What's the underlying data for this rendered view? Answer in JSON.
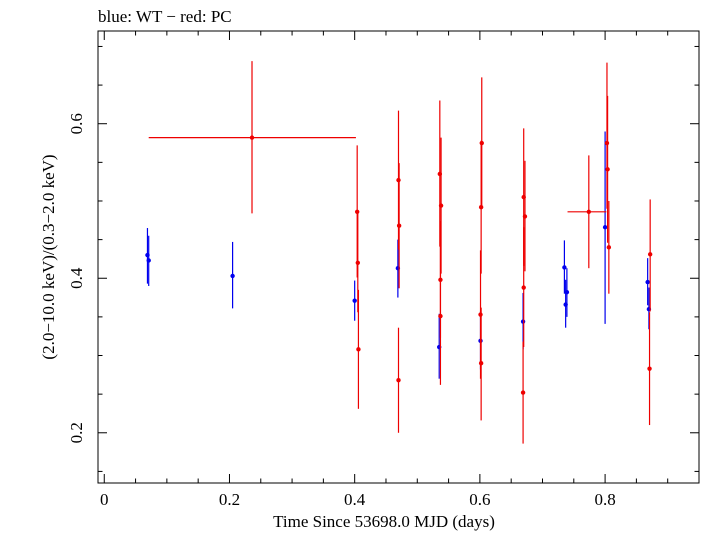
{
  "chart_data": {
    "type": "scatter",
    "title": "blue: WT − red: PC",
    "xlabel": "Time Since 53698.0 MJD (days)",
    "ylabel": "(2.0−10.0 keV)/(0.3−2.0 keV)",
    "xlim": [
      -0.01,
      0.95
    ],
    "ylim": [
      0.135,
      0.72
    ],
    "xticks": [
      0,
      0.2,
      0.4,
      0.6,
      0.8
    ],
    "xtick_labels": [
      "0",
      "0.2",
      "0.4",
      "0.6",
      "0.8"
    ],
    "yticks": [
      0.2,
      0.4,
      0.6
    ],
    "ytick_labels": [
      "0.2",
      "0.4",
      "0.6"
    ],
    "grid": false,
    "series": [
      {
        "name": "WT",
        "color": "#0000ee",
        "points": [
          {
            "x": 0.069,
            "y": 0.43,
            "ylo": 0.393,
            "yhi": 0.465
          },
          {
            "x": 0.071,
            "y": 0.423,
            "ylo": 0.39,
            "yhi": 0.455
          },
          {
            "x": 0.205,
            "y": 0.403,
            "ylo": 0.361,
            "yhi": 0.447
          },
          {
            "x": 0.4,
            "y": 0.371,
            "ylo": 0.345,
            "yhi": 0.397
          },
          {
            "x": 0.469,
            "y": 0.413,
            "ylo": 0.375,
            "yhi": 0.45
          },
          {
            "x": 0.535,
            "y": 0.311,
            "ylo": 0.27,
            "yhi": 0.354
          },
          {
            "x": 0.601,
            "y": 0.319,
            "ylo": 0.282,
            "yhi": 0.357
          },
          {
            "x": 0.669,
            "y": 0.344,
            "ylo": 0.308,
            "yhi": 0.381
          },
          {
            "x": 0.735,
            "y": 0.414,
            "ylo": 0.38,
            "yhi": 0.449
          },
          {
            "x": 0.737,
            "y": 0.366,
            "ylo": 0.336,
            "yhi": 0.398
          },
          {
            "x": 0.739,
            "y": 0.382,
            "ylo": 0.35,
            "yhi": 0.413
          },
          {
            "x": 0.8,
            "y": 0.466,
            "ylo": 0.341,
            "yhi": 0.59
          },
          {
            "x": 0.868,
            "y": 0.395,
            "ylo": 0.365,
            "yhi": 0.426
          },
          {
            "x": 0.87,
            "y": 0.36,
            "ylo": 0.334,
            "yhi": 0.388
          }
        ]
      },
      {
        "name": "PC",
        "color": "#ee0000",
        "points": [
          {
            "x": 0.236,
            "y": 0.582,
            "ylo": 0.484,
            "yhi": 0.681,
            "xlo": 0.071,
            "xhi": 0.402
          },
          {
            "x": 0.404,
            "y": 0.486,
            "ylo": 0.401,
            "yhi": 0.572
          },
          {
            "x": 0.405,
            "y": 0.42,
            "ylo": 0.356,
            "yhi": 0.486
          },
          {
            "x": 0.406,
            "y": 0.308,
            "ylo": 0.231,
            "yhi": 0.385
          },
          {
            "x": 0.47,
            "y": 0.527,
            "ylo": 0.437,
            "yhi": 0.617
          },
          {
            "x": 0.471,
            "y": 0.468,
            "ylo": 0.387,
            "yhi": 0.549
          },
          {
            "x": 0.47,
            "y": 0.268,
            "ylo": 0.2,
            "yhi": 0.336
          },
          {
            "x": 0.536,
            "y": 0.535,
            "ylo": 0.441,
            "yhi": 0.63
          },
          {
            "x": 0.538,
            "y": 0.494,
            "ylo": 0.406,
            "yhi": 0.582
          },
          {
            "x": 0.537,
            "y": 0.398,
            "ylo": 0.323,
            "yhi": 0.474
          },
          {
            "x": 0.537,
            "y": 0.351,
            "ylo": 0.262,
            "yhi": 0.441
          },
          {
            "x": 0.603,
            "y": 0.575,
            "ylo": 0.49,
            "yhi": 0.66
          },
          {
            "x": 0.602,
            "y": 0.492,
            "ylo": 0.406,
            "yhi": 0.578
          },
          {
            "x": 0.601,
            "y": 0.353,
            "ylo": 0.27,
            "yhi": 0.436
          },
          {
            "x": 0.602,
            "y": 0.29,
            "ylo": 0.216,
            "yhi": 0.362
          },
          {
            "x": 0.67,
            "y": 0.505,
            "ylo": 0.416,
            "yhi": 0.594
          },
          {
            "x": 0.672,
            "y": 0.48,
            "ylo": 0.409,
            "yhi": 0.552
          },
          {
            "x": 0.67,
            "y": 0.388,
            "ylo": 0.311,
            "yhi": 0.466
          },
          {
            "x": 0.669,
            "y": 0.252,
            "ylo": 0.186,
            "yhi": 0.318
          },
          {
            "x": 0.774,
            "y": 0.486,
            "ylo": 0.413,
            "yhi": 0.559,
            "xlo": 0.74,
            "xhi": 0.802
          },
          {
            "x": 0.803,
            "y": 0.575,
            "ylo": 0.49,
            "yhi": 0.679
          },
          {
            "x": 0.804,
            "y": 0.541,
            "ylo": 0.446,
            "yhi": 0.636
          },
          {
            "x": 0.806,
            "y": 0.44,
            "ylo": 0.38,
            "yhi": 0.5
          },
          {
            "x": 0.872,
            "y": 0.431,
            "ylo": 0.357,
            "yhi": 0.502
          },
          {
            "x": 0.871,
            "y": 0.283,
            "ylo": 0.21,
            "yhi": 0.356
          }
        ]
      }
    ]
  }
}
